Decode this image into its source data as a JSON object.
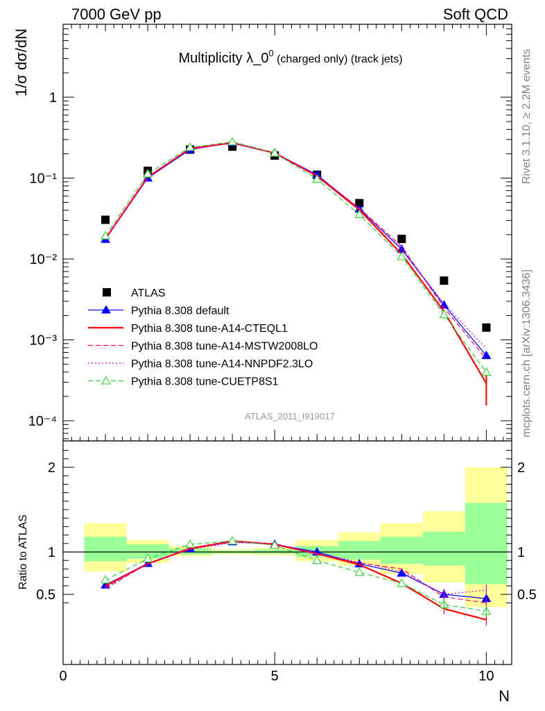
{
  "header": {
    "left": "7000 GeV pp",
    "right": "Soft QCD",
    "side_top": "Rivet 3.1.10, ≥ 2.2M events",
    "side_bottom": "mcplots.cern.ch [arXiv:1306.3436]"
  },
  "colors": {
    "data": "#000000",
    "default": "#0000ff",
    "cteql1": "#ff0000",
    "mstw": "#ff0066",
    "nnpdf": "#cc00cc",
    "cuetp8s1": "#33cc33",
    "band_outer": "#ffff99",
    "band_inner": "#99ff99",
    "watermark": "#999999"
  },
  "chart_data": [
    {
      "type": "line",
      "title": "Multiplicity λ_0",
      "title_sup": "0",
      "title_suffix": " (charged only) (track jets)",
      "ylabel": "1/σ dσ/dN",
      "xlabel": "",
      "yscale": "log",
      "xlim": [
        0,
        10.6
      ],
      "ylim": [
        5e-05,
        7
      ],
      "y_ticks": [
        "1",
        "10⁻¹",
        "10⁻²",
        "10⁻³",
        "10⁻⁴"
      ],
      "watermark": "ATLAS_2011_I919017",
      "legend_position": "lower-left",
      "x": [
        1,
        2,
        3,
        4,
        5,
        6,
        7,
        8,
        9,
        10
      ],
      "series": [
        {
          "name": "ATLAS",
          "key": "data",
          "style": "square",
          "values": [
            0.0305,
            0.123,
            0.225,
            0.245,
            0.19,
            0.11,
            0.049,
            0.0177,
            0.0054,
            0.00142
          ]
        },
        {
          "name": "Pythia 8.308 default",
          "key": "default",
          "style": "solid-triangle",
          "values": [
            0.0175,
            0.1,
            0.225,
            0.275,
            0.205,
            0.11,
            0.0415,
            0.0132,
            0.0027,
            0.00064
          ]
        },
        {
          "name": "Pythia 8.308 tune-A14-CTEQL1",
          "key": "cteql1",
          "style": "solid-thick",
          "values": [
            0.0178,
            0.103,
            0.231,
            0.273,
            0.204,
            0.106,
            0.0405,
            0.0115,
            0.00225,
            0.00029
          ]
        },
        {
          "name": "Pythia 8.308 tune-A14-MSTW2008LO",
          "key": "mstw",
          "style": "dashed",
          "values": [
            0.0174,
            0.102,
            0.23,
            0.27,
            0.206,
            0.108,
            0.0425,
            0.0143,
            0.0025,
            0.00058
          ]
        },
        {
          "name": "Pythia 8.308 tune-A14-NNPDF2.3LO",
          "key": "nnpdf",
          "style": "dotted",
          "values": [
            0.0176,
            0.103,
            0.228,
            0.273,
            0.207,
            0.108,
            0.0418,
            0.0135,
            0.0028,
            0.00078
          ]
        },
        {
          "name": "Pythia 8.308 tune-CUETP8S1",
          "key": "cuetp8s1",
          "style": "dashed-open-triangle",
          "values": [
            0.0193,
            0.113,
            0.24,
            0.281,
            0.204,
            0.097,
            0.0355,
            0.0107,
            0.00205,
            0.0004
          ]
        }
      ]
    },
    {
      "type": "line",
      "title": "",
      "ylabel": "Ratio to ATLAS",
      "xlabel": "N",
      "xlim": [
        0,
        10.6
      ],
      "ylim": [
        0.35,
        2.25
      ],
      "x_ticks": [
        0,
        5,
        10
      ],
      "y_ticks": [
        0.5,
        1,
        2
      ],
      "reference_line": 1,
      "x": [
        1,
        2,
        3,
        4,
        5,
        6,
        7,
        8,
        9,
        10
      ],
      "bands": {
        "outer": [
          [
            0.77,
            1.34
          ],
          [
            0.87,
            1.14
          ],
          [
            0.95,
            1.07
          ],
          [
            0.97,
            1.03
          ],
          [
            0.96,
            1.05
          ],
          [
            0.89,
            1.14
          ],
          [
            0.84,
            1.23
          ],
          [
            0.74,
            1.34
          ],
          [
            0.64,
            1.48
          ],
          [
            0.35,
            2.0
          ]
        ],
        "inner": [
          [
            0.89,
            1.18
          ],
          [
            0.92,
            1.09
          ],
          [
            0.97,
            1.04
          ],
          [
            0.985,
            1.015
          ],
          [
            0.98,
            1.03
          ],
          [
            0.94,
            1.07
          ],
          [
            0.91,
            1.13
          ],
          [
            0.86,
            1.18
          ],
          [
            0.84,
            1.24
          ],
          [
            0.62,
            1.58
          ]
        ]
      },
      "series": [
        {
          "name": "Pythia 8.308 default",
          "key": "default",
          "style": "solid-triangle",
          "values": [
            0.61,
            0.865,
            1.04,
            1.12,
            1.09,
            1.0,
            0.86,
            0.75,
            0.5,
            0.45
          ]
        },
        {
          "name": "Pythia 8.308 tune-A14-CTEQL1",
          "key": "cteql1",
          "style": "solid-thick",
          "values": [
            0.6,
            0.86,
            1.04,
            1.13,
            1.09,
            0.98,
            0.85,
            0.63,
            0.33,
            0.2
          ]
        },
        {
          "name": "Pythia 8.308 tune-A14-MSTW2008LO",
          "key": "mstw",
          "style": "dashed",
          "values": [
            0.57,
            0.86,
            1.05,
            1.12,
            1.1,
            0.97,
            0.87,
            0.8,
            0.47,
            0.4
          ]
        },
        {
          "name": "Pythia 8.308 tune-A14-NNPDF2.3LO",
          "key": "nnpdf",
          "style": "dotted",
          "values": [
            0.58,
            0.87,
            1.03,
            1.11,
            1.1,
            0.98,
            0.88,
            0.77,
            0.5,
            0.55
          ]
        },
        {
          "name": "Pythia 8.308 tune-CUETP8S1",
          "key": "cuetp8s1",
          "style": "dashed-open-triangle",
          "values": [
            0.67,
            0.92,
            1.09,
            1.13,
            1.08,
            0.9,
            0.76,
            0.63,
            0.38,
            0.3
          ]
        }
      ]
    }
  ]
}
